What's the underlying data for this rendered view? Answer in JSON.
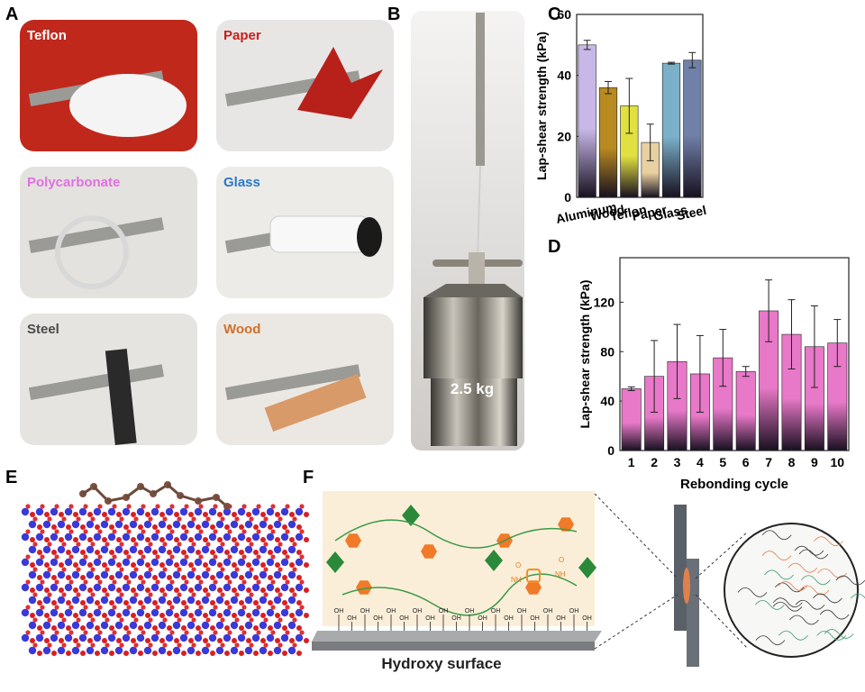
{
  "panel_labels": [
    "A",
    "B",
    "C",
    "D",
    "E",
    "F"
  ],
  "photos": [
    {
      "label": "Teflon",
      "color": "#ffffff"
    },
    {
      "label": "Paper",
      "color": "#c8201c"
    },
    {
      "label": "Polycarbonate",
      "color": "#e070e0"
    },
    {
      "label": "Glass",
      "color": "#2a78c8"
    },
    {
      "label": "Steel",
      "color": "#4a4a4a"
    },
    {
      "label": "Wood",
      "color": "#d0702a"
    }
  ],
  "weight_label": "2.5 kg",
  "surface_label": "Hydroxy surface",
  "surface_groups": [
    "OH",
    "OH",
    "OH",
    "OH",
    "OH",
    "OH",
    "OH",
    "OH",
    "OH",
    "OH",
    "OH",
    "OH",
    "OH",
    "OH",
    "OH",
    "OH",
    "OH",
    "OH",
    "OH",
    "OH"
  ],
  "amide_labels": [
    "O",
    "NH",
    "O",
    "NH"
  ],
  "chart_data": [
    {
      "type": "bar",
      "y_label": "Lap-shear strength (kPa)",
      "categories": [
        "Aluminum",
        "Wood",
        "Teflon",
        "Paper",
        "Glass",
        "Steel"
      ],
      "values": [
        50,
        36,
        30,
        18,
        44,
        45
      ],
      "errors": [
        1.5,
        2,
        9,
        6,
        0.3,
        2.5
      ],
      "colors": [
        "#c8b8e8",
        "#b88a20",
        "#e0e040",
        "#e8d0a0",
        "#7ab0c8",
        "#7080a8"
      ],
      "ylim": [
        0,
        60
      ],
      "yticks": [
        0,
        20,
        40,
        60
      ]
    },
    {
      "type": "bar",
      "y_label": "Lap-shear strength (kPa)",
      "x_label": "Rebonding cycle",
      "categories": [
        "1",
        "2",
        "3",
        "4",
        "5",
        "6",
        "7",
        "8",
        "9",
        "10"
      ],
      "values": [
        50,
        60,
        72,
        62,
        75,
        64,
        113,
        94,
        84,
        87
      ],
      "errors": [
        1.5,
        29,
        30,
        31,
        23,
        4,
        25,
        28,
        33,
        19
      ],
      "color": "#e878c8",
      "ylim": [
        0,
        156
      ],
      "yticks": [
        0,
        40,
        80,
        120
      ]
    }
  ]
}
